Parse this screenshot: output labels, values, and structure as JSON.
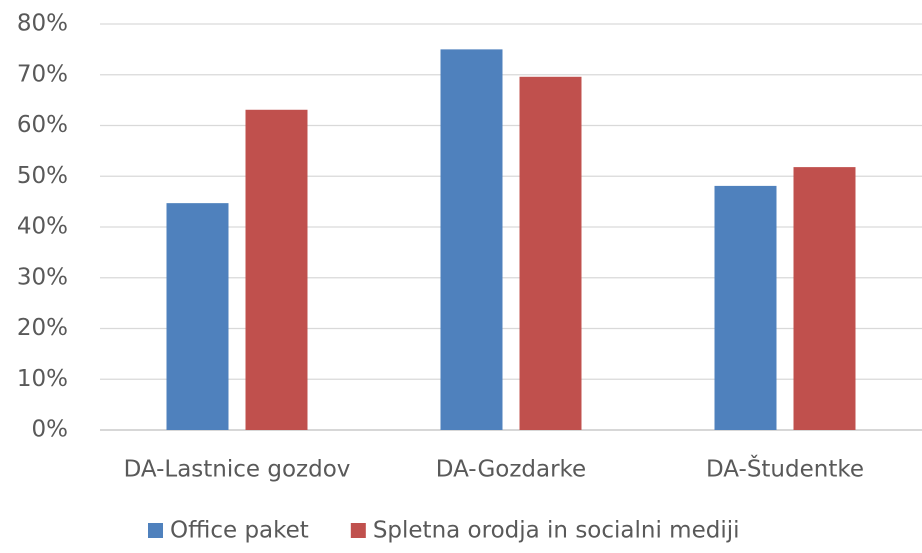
{
  "chart_data": {
    "type": "bar",
    "categories": [
      "DA-Lastnice gozdov",
      "DA-Gozdarke",
      "DA-Študentke"
    ],
    "series": [
      {
        "name": "Office paket",
        "color": "#4f81bd",
        "values": [
          44.7,
          75.0,
          48.1
        ]
      },
      {
        "name": "Spletna orodja in socialni mediji",
        "color": "#c0504d",
        "values": [
          63.1,
          69.6,
          51.8
        ]
      }
    ],
    "ylim": [
      0,
      80
    ],
    "yticks": [
      {
        "value": 0,
        "label": "0%"
      },
      {
        "value": 10,
        "label": "10%"
      },
      {
        "value": 20,
        "label": "20%"
      },
      {
        "value": 30,
        "label": "30%"
      },
      {
        "value": 40,
        "label": "40%"
      },
      {
        "value": 50,
        "label": "50%"
      },
      {
        "value": 60,
        "label": "60%"
      },
      {
        "value": 70,
        "label": "70%"
      },
      {
        "value": 80,
        "label": "80%"
      }
    ],
    "grid": true,
    "legend": "bottom"
  }
}
